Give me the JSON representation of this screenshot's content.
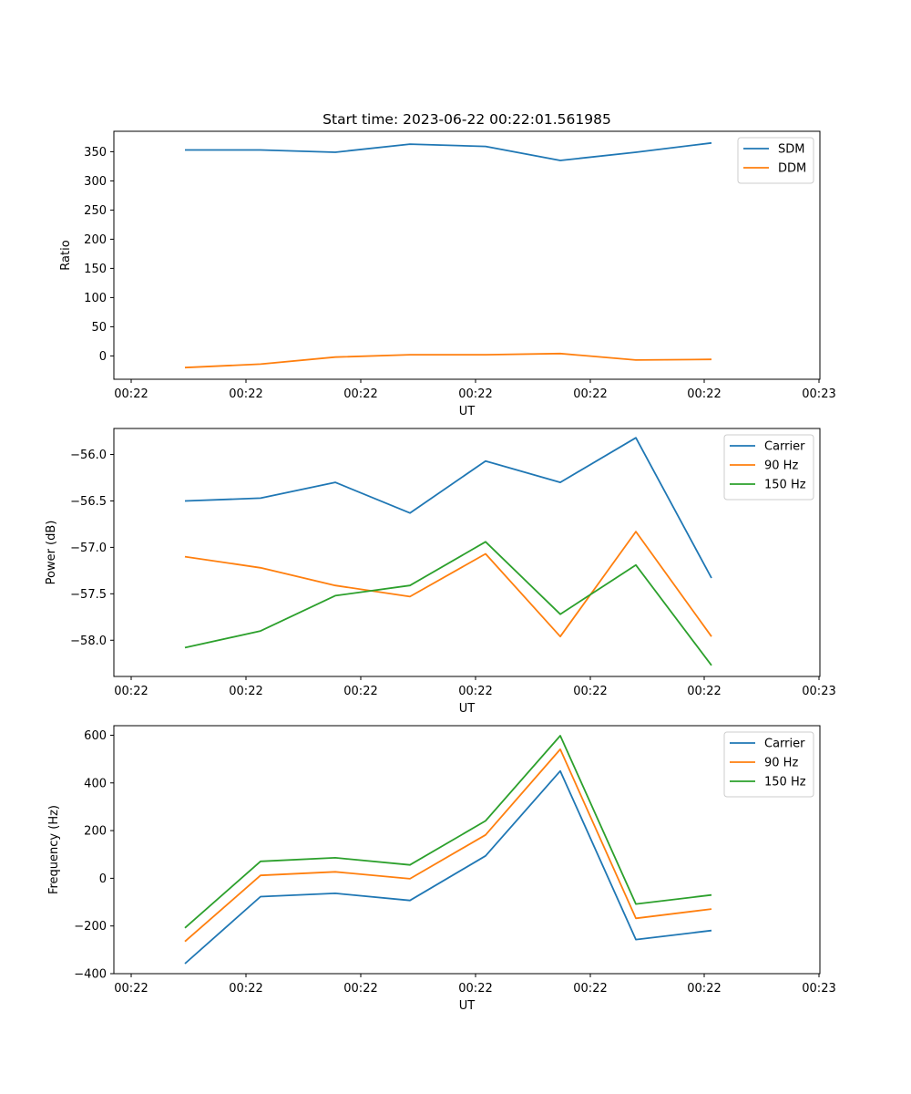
{
  "figure_title": "Start time: 2023-06-22 00:22:01.561985",
  "chart_data": [
    {
      "type": "line",
      "title": "Start time: 2023-06-22 00:22:01.561985",
      "xlabel": "UT",
      "ylabel": "Ratio",
      "x_tick_labels": [
        "00:22",
        "00:22",
        "00:22",
        "00:22",
        "00:22",
        "00:22",
        "00:23"
      ],
      "ylim": [
        -40,
        385
      ],
      "y_ticks": [
        0,
        50,
        100,
        150,
        200,
        250,
        300,
        350
      ],
      "y_tick_labels": [
        "0",
        "50",
        "100",
        "150",
        "200",
        "250",
        "300",
        "350"
      ],
      "legend_placement": "upper right",
      "grid": false,
      "series": [
        {
          "name": "SDM",
          "color": "#1f77b4",
          "values": [
            353,
            353,
            349,
            363,
            359,
            335,
            349,
            365
          ]
        },
        {
          "name": "DDM",
          "color": "#ff7f0e",
          "values": [
            -20,
            -14,
            -2,
            2,
            2,
            4,
            -7,
            -6
          ]
        }
      ]
    },
    {
      "type": "line",
      "title": "",
      "xlabel": "UT",
      "ylabel": "Power (dB)",
      "x_tick_labels": [
        "00:22",
        "00:22",
        "00:22",
        "00:22",
        "00:22",
        "00:22",
        "00:23"
      ],
      "ylim": [
        -58.39,
        -55.72
      ],
      "y_ticks": [
        -58.0,
        -57.5,
        -57.0,
        -56.5,
        -56.0
      ],
      "y_tick_labels": [
        "−58.0",
        "−57.5",
        "−57.0",
        "−56.5",
        "−56.0"
      ],
      "legend_placement": "upper right",
      "grid": false,
      "series": [
        {
          "name": "Carrier",
          "color": "#1f77b4",
          "values": [
            -56.5,
            -56.47,
            -56.3,
            -56.63,
            -56.07,
            -56.3,
            -55.82,
            -57.33
          ]
        },
        {
          "name": "90 Hz",
          "color": "#ff7f0e",
          "values": [
            -57.1,
            -57.22,
            -57.41,
            -57.53,
            -57.07,
            -57.96,
            -56.83,
            -57.96
          ]
        },
        {
          "name": "150 Hz",
          "color": "#2ca02c",
          "values": [
            -58.08,
            -57.9,
            -57.52,
            -57.41,
            -56.94,
            -57.72,
            -57.19,
            -58.27
          ]
        }
      ]
    },
    {
      "type": "line",
      "title": "",
      "xlabel": "UT",
      "ylabel": "Frequency (Hz)",
      "x_tick_labels": [
        "00:22",
        "00:22",
        "00:22",
        "00:22",
        "00:22",
        "00:22",
        "00:23"
      ],
      "ylim": [
        -400,
        640
      ],
      "y_ticks": [
        -400,
        -200,
        0,
        200,
        400,
        600
      ],
      "y_tick_labels": [
        "−400",
        "−200",
        "0",
        "200",
        "400",
        "600"
      ],
      "legend_placement": "upper right",
      "grid": false,
      "series": [
        {
          "name": "Carrier",
          "color": "#1f77b4",
          "values": [
            -358,
            -77,
            -63,
            -93,
            94,
            450,
            -257,
            -219
          ]
        },
        {
          "name": "90 Hz",
          "color": "#ff7f0e",
          "values": [
            -265,
            12,
            27,
            -2,
            182,
            541,
            -168,
            -129
          ]
        },
        {
          "name": "150 Hz",
          "color": "#2ca02c",
          "values": [
            -208,
            71,
            86,
            56,
            241,
            598,
            -108,
            -70
          ]
        }
      ]
    }
  ]
}
